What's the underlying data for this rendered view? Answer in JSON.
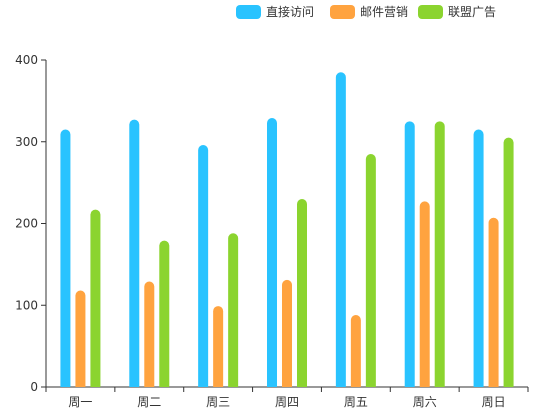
{
  "chart_data": {
    "type": "bar",
    "categories": [
      "周一",
      "周二",
      "周三",
      "周四",
      "周五",
      "周六",
      "周日"
    ],
    "series": [
      {
        "name": "直接访问",
        "color": "#29C3FF",
        "values": [
          315,
          327,
          296,
          329,
          385,
          325,
          315
        ]
      },
      {
        "name": "邮件营销",
        "color": "#FFA33F",
        "values": [
          118,
          129,
          99,
          131,
          88,
          227,
          207
        ]
      },
      {
        "name": "联盟广告",
        "color": "#8BD42F",
        "values": [
          217,
          179,
          188,
          230,
          285,
          325,
          305
        ]
      }
    ],
    "ylim": [
      0,
      400
    ],
    "yticks": [
      0,
      100,
      200,
      300,
      400
    ],
    "grid": false,
    "legend_position": "top-right"
  }
}
